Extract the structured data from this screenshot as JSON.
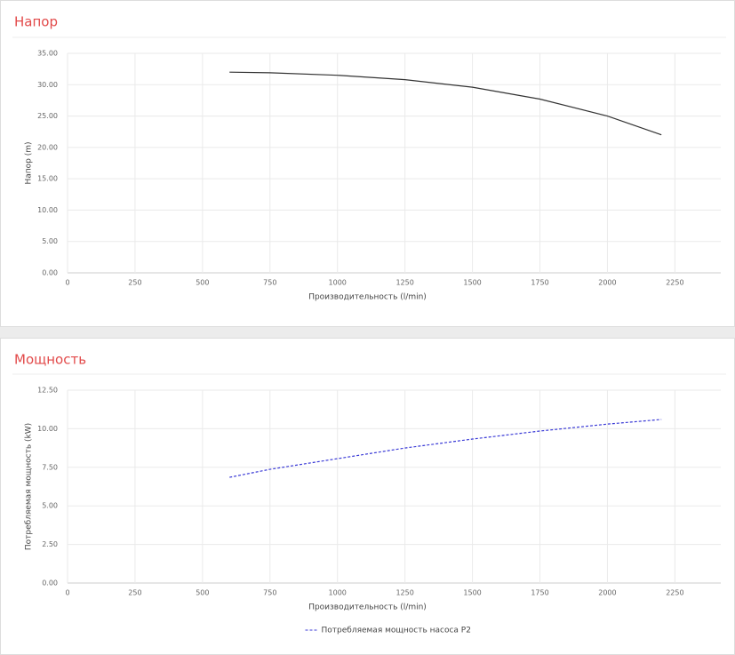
{
  "chart_data": [
    {
      "type": "line",
      "title": "Напор",
      "x_label": "Производительность (l/min)",
      "y_label": "Напор (m)",
      "x": [
        600,
        750,
        1000,
        1250,
        1500,
        1750,
        2000,
        2200
      ],
      "values": [
        32.0,
        31.9,
        31.5,
        30.8,
        29.6,
        27.7,
        25.0,
        22.0
      ],
      "color": "#333333",
      "xlim": [
        0,
        2420
      ],
      "xticks": [
        0,
        250,
        500,
        750,
        1000,
        1250,
        1500,
        1750,
        2000,
        2250
      ],
      "ylim": [
        0,
        35
      ],
      "yticks": [
        {
          "value": 0,
          "label": "0.00"
        },
        {
          "value": 5,
          "label": "5.00"
        },
        {
          "value": 10,
          "label": "10.00"
        },
        {
          "value": 15,
          "label": "15.00"
        },
        {
          "value": 20,
          "label": "20.00"
        },
        {
          "value": 25,
          "label": "25.00"
        },
        {
          "value": 30,
          "label": "30.00"
        },
        {
          "value": 35,
          "label": "35.00"
        }
      ],
      "grid": true
    },
    {
      "type": "line",
      "title": "Мощность",
      "x_label": "Производительность (l/min)",
      "y_label": "Потребляемая мощность (kW)",
      "x": [
        600,
        750,
        1000,
        1250,
        1500,
        1750,
        2000,
        2200
      ],
      "series": [
        {
          "name": "Потребляемая мощность насоса P2",
          "color": "#3a3ad6",
          "line_style": "dashed",
          "values": [
            6.85,
            7.37,
            8.06,
            8.75,
            9.33,
            9.85,
            10.3,
            10.6
          ]
        }
      ],
      "xlim": [
        0,
        2420
      ],
      "xticks": [
        0,
        250,
        500,
        750,
        1000,
        1250,
        1500,
        1750,
        2000,
        2250
      ],
      "ylim": [
        0,
        12.5
      ],
      "yticks": [
        {
          "value": 0,
          "label": "0.00"
        },
        {
          "value": 2.5,
          "label": "2.50"
        },
        {
          "value": 5,
          "label": "5.00"
        },
        {
          "value": 7.5,
          "label": "7.50"
        },
        {
          "value": 10,
          "label": "10.00"
        },
        {
          "value": 12.5,
          "label": "12.50"
        }
      ],
      "grid": true,
      "legend": "bottom"
    }
  ]
}
